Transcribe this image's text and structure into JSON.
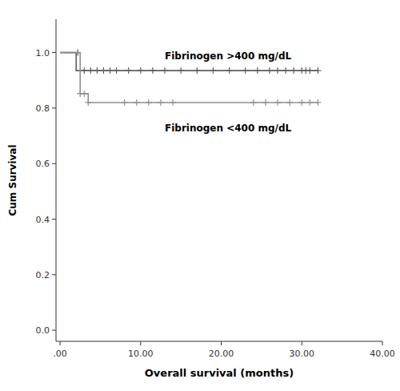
{
  "chart_data": {
    "type": "step",
    "title": "",
    "xlabel": "Overall survival (months)",
    "ylabel": "Cum Survival",
    "xlim": [
      -0.5,
      40
    ],
    "ylim": [
      -0.04,
      1.12
    ],
    "xticks": [
      {
        "value": 0.0,
        "label": ".00"
      },
      {
        "value": 10.0,
        "label": "10.00"
      },
      {
        "value": 20.0,
        "label": "20.00"
      },
      {
        "value": 30.0,
        "label": "30.00"
      },
      {
        "value": 40.0,
        "label": "40.00"
      }
    ],
    "yticks": [
      {
        "value": 0.0,
        "label": "0.0"
      },
      0.2,
      0.4,
      0.6,
      0.8,
      {
        "value": 1.0,
        "label": "1.0"
      }
    ],
    "grid": false,
    "series": [
      {
        "color": "#606060",
        "x": [
          0.0,
          2.0,
          2.0,
          32.0
        ],
        "values": [
          1.0,
          1.0,
          0.935,
          0.935
        ],
        "censors_x": [
          2.2,
          3.0,
          3.8,
          4.6,
          5.4,
          6.2,
          7.0,
          8.5,
          10.0,
          11.5,
          13.0,
          15.0,
          17.0,
          19.0,
          21.0,
          23.0,
          24.5,
          26.0,
          27.0,
          28.0,
          29.0,
          30.0,
          30.5,
          31.0,
          32.0
        ],
        "censors_y": [
          1.0,
          0.935,
          0.935,
          0.935,
          0.935,
          0.935,
          0.935,
          0.935,
          0.935,
          0.935,
          0.935,
          0.935,
          0.935,
          0.935,
          0.935,
          0.935,
          0.935,
          0.935,
          0.935,
          0.935,
          0.935,
          0.935,
          0.935,
          0.935,
          0.935
        ]
      },
      {
        "color": "#909090",
        "x": [
          0.0,
          2.5,
          2.5,
          3.5,
          3.5,
          5.0,
          5.0,
          32.0
        ],
        "values": [
          1.0,
          1.0,
          0.852,
          0.852,
          0.82,
          0.82,
          0.82,
          0.82
        ],
        "censors_x": [
          2.5,
          3.0,
          3.5,
          8.0,
          9.5,
          11.0,
          12.5,
          14.0,
          24.0,
          25.5,
          27.0,
          28.5,
          30.0,
          31.0,
          32.0
        ],
        "censors_y": [
          0.852,
          0.852,
          0.82,
          0.82,
          0.82,
          0.82,
          0.82,
          0.82,
          0.82,
          0.82,
          0.82,
          0.82,
          0.82,
          0.82,
          0.82
        ]
      }
    ],
    "annotations": [
      {
        "text": "Fibrinogen >400 mg/dL",
        "x": 13.0,
        "y": 0.985
      },
      {
        "text": "Fibrinogen <400 mg/dL",
        "x": 13.0,
        "y": 0.725
      }
    ]
  }
}
